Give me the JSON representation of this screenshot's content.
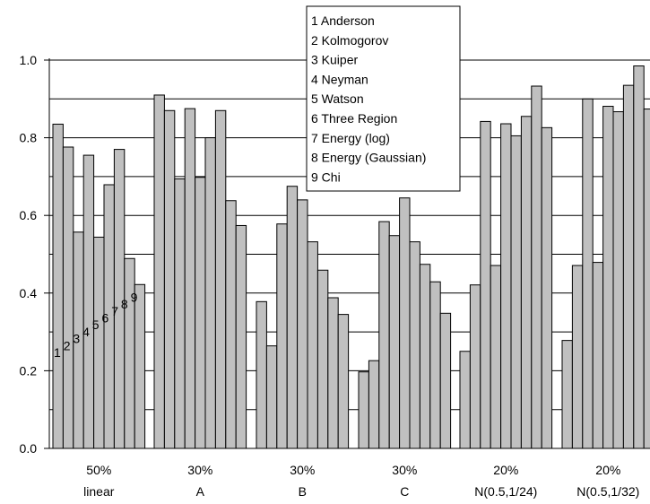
{
  "chart_data": {
    "type": "bar",
    "categories": [
      [
        "50%",
        "linear"
      ],
      [
        "30%",
        "A"
      ],
      [
        "30%",
        "B"
      ],
      [
        "30%",
        "C"
      ],
      [
        "20%",
        "N(0.5,1/24)"
      ],
      [
        "20%",
        "N(0.5,1/32)"
      ]
    ],
    "series": [
      {
        "name": "Anderson",
        "values": [
          0.835,
          0.91,
          0.378,
          0.197,
          0.25,
          0.278
        ]
      },
      {
        "name": "Kolmogorov",
        "values": [
          0.776,
          0.87,
          0.264,
          0.226,
          0.421,
          0.471
        ]
      },
      {
        "name": "Kuiper",
        "values": [
          0.557,
          0.694,
          0.578,
          0.584,
          0.842,
          0.9
        ]
      },
      {
        "name": "Neyman",
        "values": [
          0.755,
          0.875,
          0.675,
          0.548,
          0.471,
          0.479
        ]
      },
      {
        "name": "Watson",
        "values": [
          0.544,
          0.698,
          0.64,
          0.645,
          0.836,
          0.881
        ]
      },
      {
        "name": "Three Region",
        "values": [
          0.679,
          0.8,
          0.532,
          0.532,
          0.805,
          0.867
        ]
      },
      {
        "name": "Energy (log)",
        "values": [
          0.77,
          0.87,
          0.459,
          0.474,
          0.855,
          0.935
        ]
      },
      {
        "name": "Energy (Gaussian)",
        "values": [
          0.489,
          0.638,
          0.388,
          0.429,
          0.933,
          0.985
        ]
      },
      {
        "name": "Chi",
        "values": [
          0.422,
          0.574,
          0.345,
          0.348,
          0.826,
          0.874
        ]
      }
    ],
    "legend": [
      "1 Anderson",
      "2 Kolmogorov",
      "3 Kuiper",
      "4 Neyman",
      "5 Watson",
      "6 Three Region",
      "7 Energy (log)",
      "8 Energy (Gaussian)",
      "9 Chi"
    ],
    "bar_number_labels": [
      "1",
      "2",
      "3",
      "4",
      "5",
      "6",
      "7",
      "8",
      "9"
    ],
    "ylim": [
      0,
      1.0
    ],
    "yticks": [
      "0.0",
      "0.2",
      "0.4",
      "0.6",
      "0.8",
      "1.0"
    ],
    "gridline_step": 0.1,
    "grid": true,
    "legend_position": "top-center",
    "title": "",
    "xlabel": "",
    "ylabel": "",
    "colors": {
      "bar_fill": "#c0c0c0",
      "bar_stroke": "#000000",
      "grid": "#000000"
    }
  }
}
